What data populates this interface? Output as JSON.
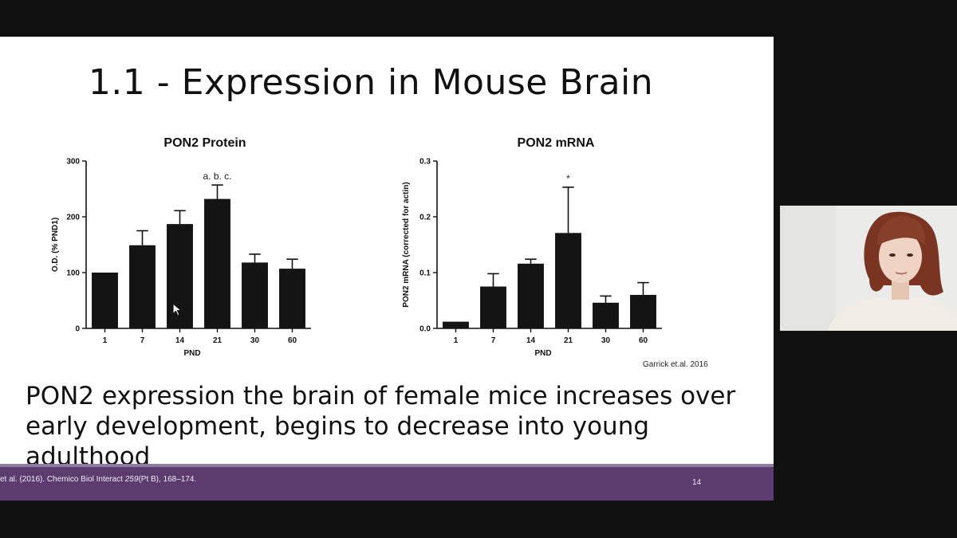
{
  "slide": {
    "title": "1.1 - Expression in Mouse Brain",
    "citation": "Garrick et.al. 2016",
    "body": "PON2 expression the brain of female mice increases over early development, begins to decrease into young adulthood",
    "footer_reference_html": "et al. (2016). Chemico Biol Interact <i>259</i>(Pt B), 168–174.",
    "slide_number": "14"
  },
  "colors": {
    "footer": "#5c3b6e",
    "footer_accent": "#8f7aa6",
    "bar": "#141414",
    "background": "#111111"
  },
  "webcam": {
    "description_icon": "presenter-video-icon"
  },
  "chart_data": [
    {
      "type": "bar",
      "title": "PON2 Protein",
      "xlabel": "PND",
      "ylabel": "O.D. (% PND1)",
      "categories": [
        "1",
        "7",
        "14",
        "21",
        "30",
        "60"
      ],
      "values": [
        100,
        149,
        187,
        232,
        118,
        107
      ],
      "errors": [
        0,
        26,
        24,
        25,
        15,
        17
      ],
      "ylim": [
        0,
        300
      ],
      "yticks": [
        0,
        100,
        200,
        300
      ],
      "ytick_labels": [
        "0",
        "100",
        "200",
        "300"
      ],
      "annotations": [
        {
          "category": "21",
          "text": "a. b. c."
        }
      ]
    },
    {
      "type": "bar",
      "title": "PON2 mRNA",
      "xlabel": "PND",
      "ylabel": "PON2 mRNA (corrected for actin)",
      "categories": [
        "1",
        "7",
        "14",
        "21",
        "30",
        "60"
      ],
      "values": [
        0.012,
        0.075,
        0.116,
        0.171,
        0.046,
        0.06
      ],
      "errors": [
        0.0,
        0.023,
        0.008,
        0.082,
        0.012,
        0.022
      ],
      "ylim": [
        0,
        0.3
      ],
      "yticks": [
        0,
        0.1,
        0.2,
        0.3
      ],
      "ytick_labels": [
        "0.0",
        "0.1",
        "0.2",
        "0.3"
      ],
      "annotations": [
        {
          "category": "21",
          "text": "*"
        }
      ]
    }
  ]
}
